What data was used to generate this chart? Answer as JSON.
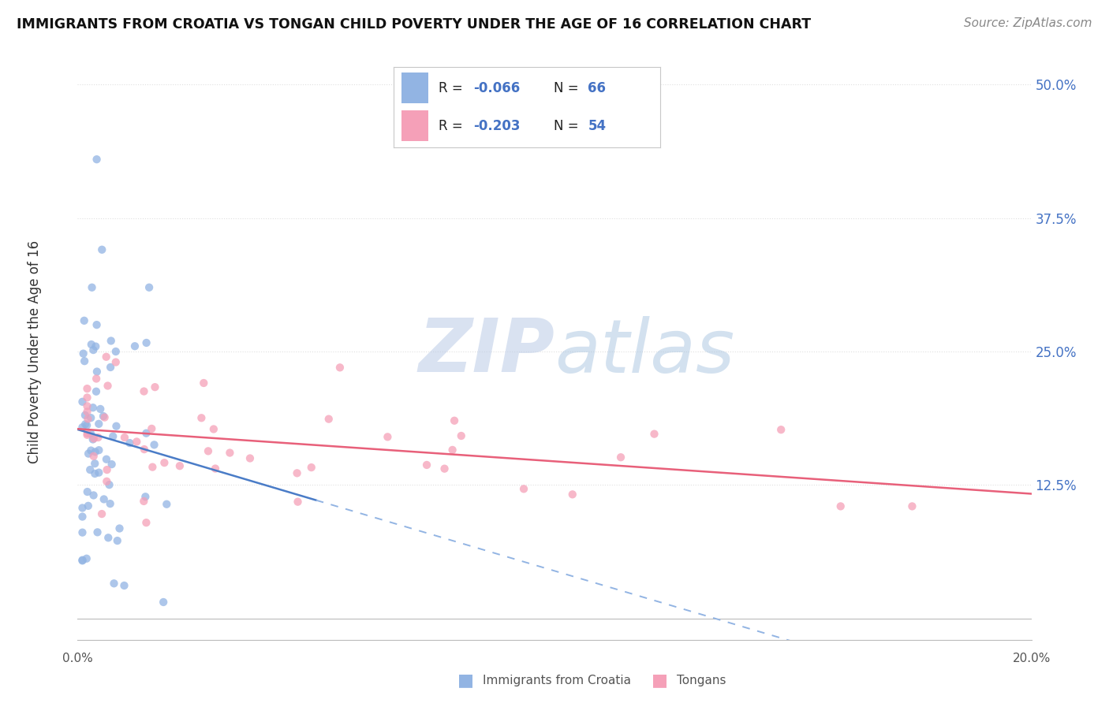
{
  "title": "IMMIGRANTS FROM CROATIA VS TONGAN CHILD POVERTY UNDER THE AGE OF 16 CORRELATION CHART",
  "source": "Source: ZipAtlas.com",
  "ylabel": "Child Poverty Under the Age of 16",
  "xlabel_croatia": "Immigrants from Croatia",
  "xlabel_tongan": "Tongans",
  "xlim": [
    0.0,
    0.2
  ],
  "ylim": [
    -0.02,
    0.52
  ],
  "ytick_right_labels": [
    "12.5%",
    "25.0%",
    "37.5%",
    "50.0%"
  ],
  "ytick_right_values": [
    0.125,
    0.25,
    0.375,
    0.5
  ],
  "croatia_color": "#92b4e3",
  "tongan_color": "#f5a0b8",
  "croatia_line_color": "#4a7cc7",
  "tongan_line_color": "#e8607a",
  "dashed_line_color": "#92b4e3",
  "R_croatia": -0.066,
  "N_croatia": 66,
  "R_tongan": -0.203,
  "N_tongan": 54,
  "background_color": "#ffffff",
  "grid_color": "#e0e0e0",
  "watermark_color": "#ccdcf0"
}
